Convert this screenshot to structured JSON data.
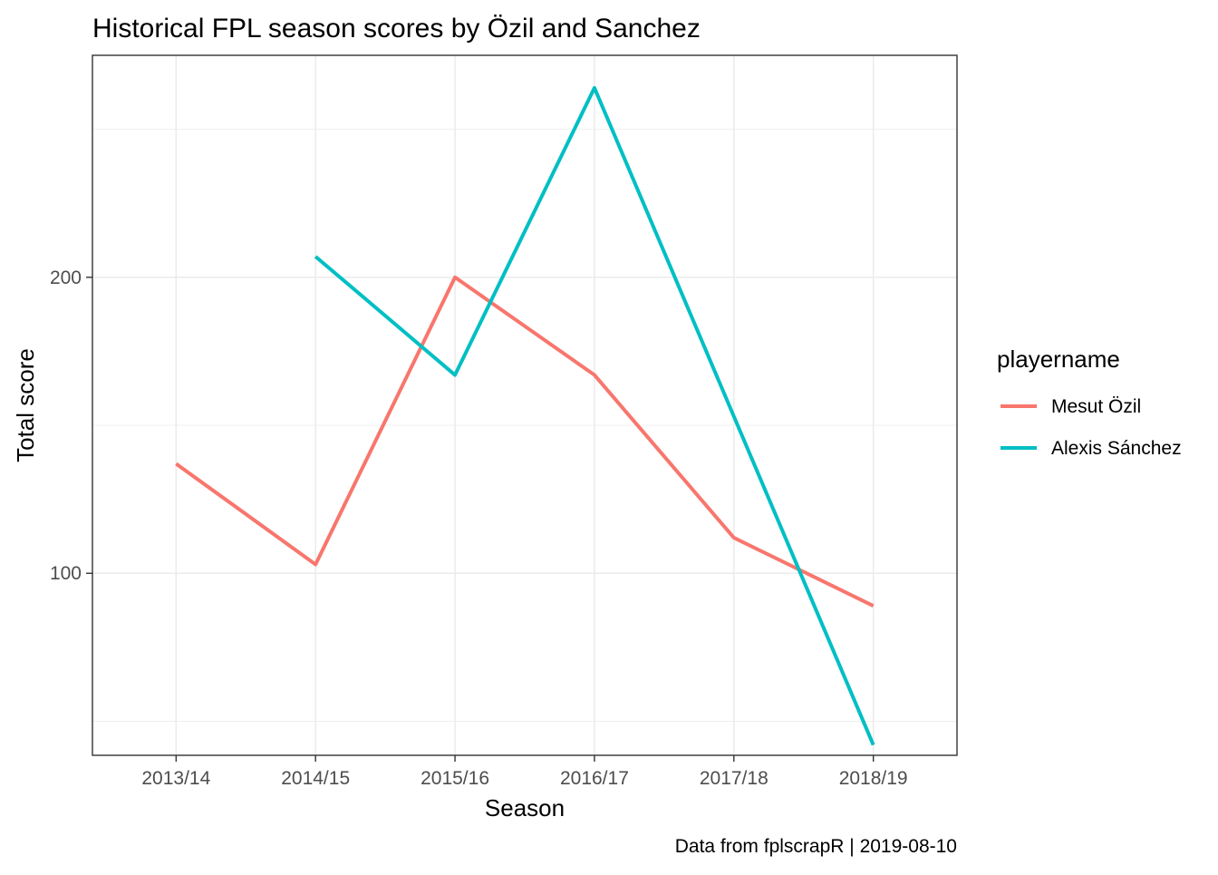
{
  "chart_data": {
    "type": "line",
    "title": "Historical FPL season scores by Özil and Sanchez",
    "xlabel": "Season",
    "ylabel": "Total score",
    "caption": "Data from fplscrapR | 2019-08-10",
    "categories": [
      "2013/14",
      "2014/15",
      "2015/16",
      "2016/17",
      "2017/18",
      "2018/19"
    ],
    "y_ticks": [
      100,
      200
    ],
    "ylim": [
      38.5,
      275
    ],
    "grid": true,
    "legend": {
      "title": "playername",
      "position": "right"
    },
    "series": [
      {
        "name": "Mesut Özil",
        "color": "#F8766D",
        "values": [
          137,
          103,
          200,
          167,
          112,
          89
        ]
      },
      {
        "name": "Alexis Sánchez",
        "color": "#00BFC4",
        "values": [
          null,
          207,
          167,
          264,
          153,
          42
        ]
      }
    ]
  }
}
